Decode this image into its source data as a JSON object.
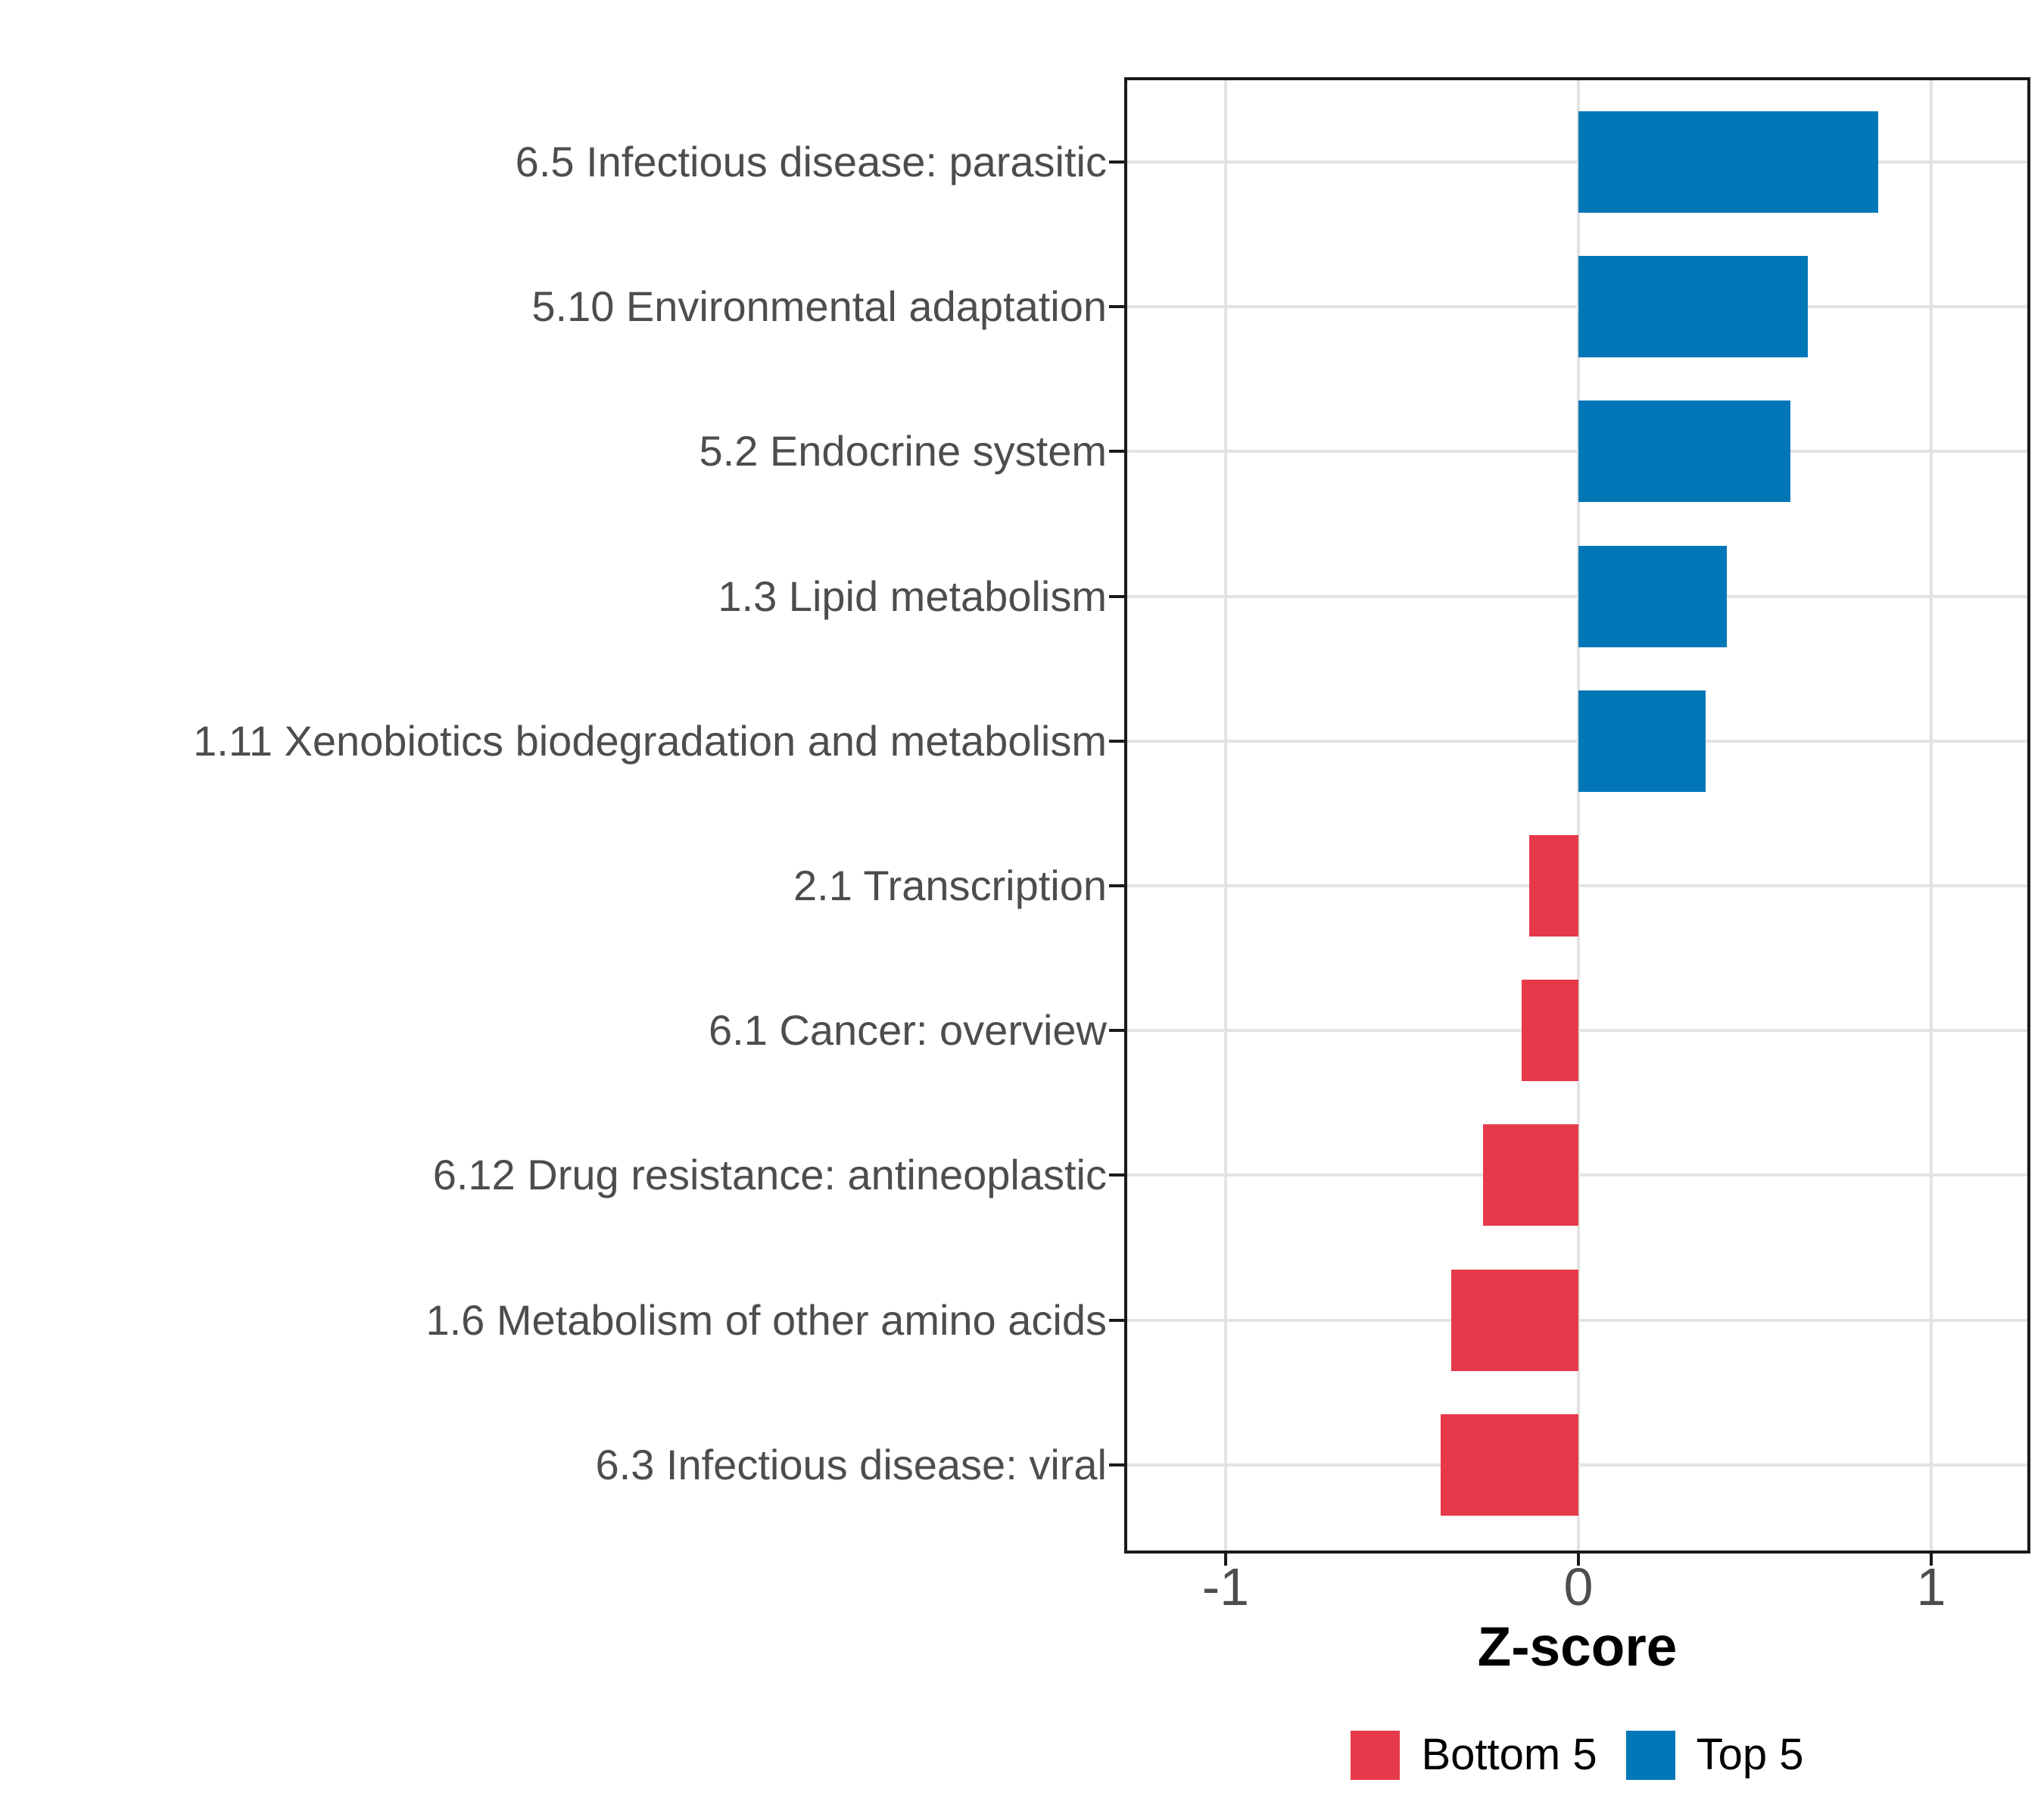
{
  "chart_data": {
    "type": "bar",
    "orientation": "horizontal",
    "title": "",
    "xlabel": "Z-score",
    "ylabel": "",
    "categories": [
      "6.5 Infectious disease: parasitic",
      "5.10 Environmental adaptation",
      "5.2 Endocrine system",
      "1.3 Lipid metabolism",
      "1.11 Xenobiotics biodegradation and metabolism",
      "2.1 Transcription",
      "6.1 Cancer: overview",
      "6.12 Drug resistance: antineoplastic",
      "1.6 Metabolism of other amino acids",
      "6.3 Infectious disease: viral"
    ],
    "values": [
      0.85,
      0.65,
      0.6,
      0.42,
      0.36,
      -0.14,
      -0.16,
      -0.27,
      -0.36,
      -0.39
    ],
    "groups": [
      "Top 5",
      "Top 5",
      "Top 5",
      "Top 5",
      "Top 5",
      "Bottom 5",
      "Bottom 5",
      "Bottom 5",
      "Bottom 5",
      "Bottom 5"
    ],
    "series": [
      {
        "name": "Bottom 5",
        "color": "#E6394A"
      },
      {
        "name": "Top 5",
        "color": "#0277B8"
      }
    ],
    "legend": [
      {
        "label": "Bottom 5",
        "color": "#E6394A"
      },
      {
        "label": "Top 5",
        "color": "#0277B8"
      }
    ],
    "legend_position": "bottom",
    "xticks": [
      -1,
      0,
      1
    ],
    "xtick_labels": [
      "-1",
      "0",
      "1"
    ],
    "xlim": [
      -1.28,
      1.27
    ],
    "grid": "major",
    "bar_width_fraction": 0.7,
    "colors": {
      "grid": "#e3e3e3",
      "panel_border": "#1a1a1a",
      "axis_text": "#4d4d4d",
      "label_text": "#000000",
      "background": "#ffffff"
    }
  }
}
